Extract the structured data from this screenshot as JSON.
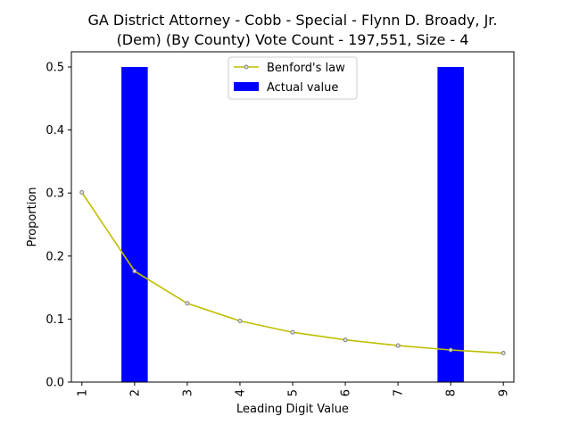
{
  "chart_data": {
    "type": "bar",
    "title_lines": [
      "GA District Attorney - Cobb - Special - Flynn D. Broady, Jr.",
      "(Dem) (By County) Vote Count - 197,551, Size - 4"
    ],
    "xlabel": "Leading Digit Value",
    "ylabel": "Proportion",
    "categories": [
      "1",
      "2",
      "3",
      "4",
      "5",
      "6",
      "7",
      "8",
      "9"
    ],
    "ylim": [
      0,
      0.5
    ],
    "yticks": [
      0.0,
      0.1,
      0.2,
      0.3,
      0.4,
      0.5
    ],
    "ytick_labels": [
      "0.0",
      "0.1",
      "0.2",
      "0.3",
      "0.4",
      "0.5"
    ],
    "grid": false,
    "legend_position": "top-center",
    "series": [
      {
        "name": "Benford's law",
        "kind": "line",
        "color": "#bfbf00",
        "marker_edge_color": "#808080",
        "values": [
          0.301,
          0.176,
          0.125,
          0.097,
          0.079,
          0.067,
          0.058,
          0.051,
          0.046
        ]
      },
      {
        "name": "Actual value",
        "kind": "bar",
        "color": "#0000ff",
        "values": [
          0.0,
          0.5,
          0.0,
          0.0,
          0.0,
          0.0,
          0.0,
          0.5,
          0.0
        ]
      }
    ]
  }
}
